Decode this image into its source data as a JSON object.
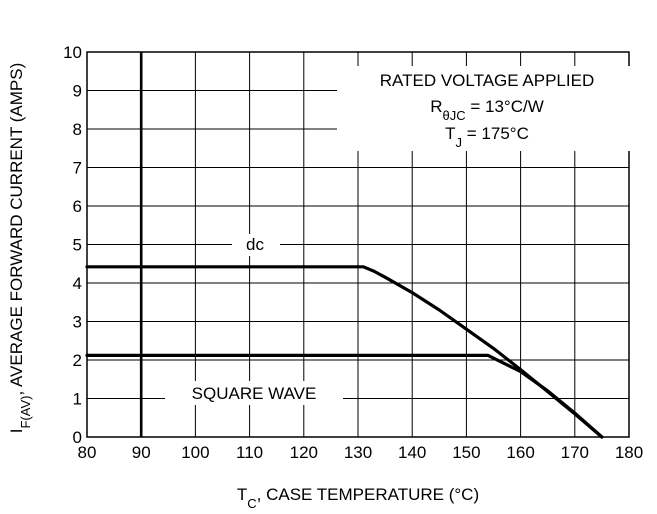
{
  "chart_data": {
    "type": "line",
    "title": "",
    "xlabel": {
      "main": "T",
      "sub": "C",
      "rest": ", CASE TEMPERATURE (°C)"
    },
    "ylabel": {
      "main": "I",
      "sub": "F(AV)",
      "rest": ", AVERAGE FORWARD CURRENT (AMPS)"
    },
    "xlim": [
      80,
      180
    ],
    "ylim": [
      0,
      10
    ],
    "xticks": [
      80,
      90,
      100,
      110,
      120,
      130,
      140,
      150,
      160,
      170,
      180
    ],
    "yticks": [
      0,
      1,
      2,
      3,
      4,
      5,
      6,
      7,
      8,
      9,
      10
    ],
    "grid": true,
    "emphasized_x": 90,
    "annotations": {
      "line1": "RATED VOLTAGE APPLIED",
      "line2": {
        "main": "R",
        "sub": "θJC",
        "rest": " = 13°C/W"
      },
      "line3": {
        "main": "T",
        "sub": "J",
        "rest": " = 175°C"
      }
    },
    "series": [
      {
        "name": "dc",
        "x": [
          80,
          131,
          133,
          135,
          140,
          145,
          150,
          155,
          160,
          165,
          170,
          175
        ],
        "y": [
          4.42,
          4.42,
          4.3,
          4.15,
          3.75,
          3.3,
          2.8,
          2.3,
          1.75,
          1.18,
          0.6,
          0.0
        ]
      },
      {
        "name": "SQUARE WAVE",
        "x": [
          80,
          154,
          160,
          165,
          170,
          175
        ],
        "y": [
          2.12,
          2.12,
          1.7,
          1.2,
          0.62,
          0.0
        ]
      }
    ]
  }
}
